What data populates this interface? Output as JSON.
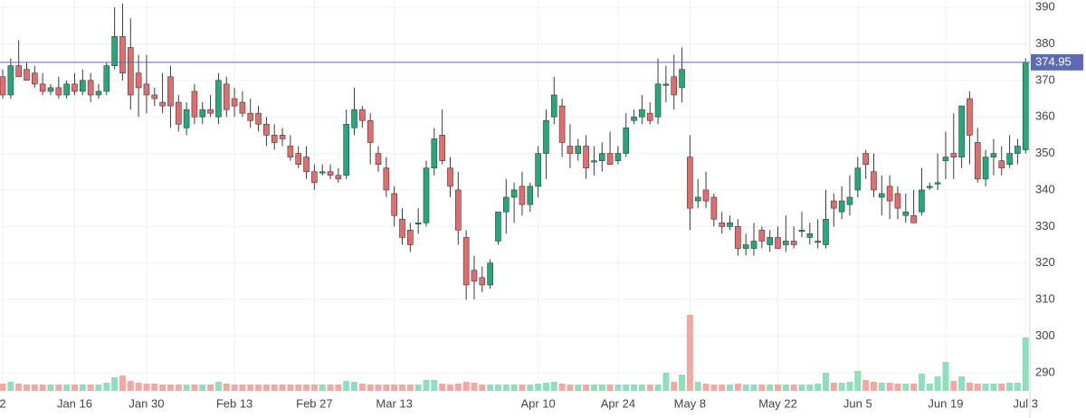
{
  "chart_data": {
    "type": "candlestick",
    "categories": [
      "2",
      null,
      null,
      null,
      null,
      null,
      null,
      null,
      null,
      "Jan 16",
      null,
      null,
      null,
      null,
      null,
      null,
      null,
      null,
      "Jan 30",
      null,
      null,
      null,
      null,
      null,
      null,
      null,
      null,
      null,
      null,
      "Feb 13",
      null,
      null,
      null,
      null,
      null,
      null,
      null,
      null,
      null,
      "Feb 27",
      null,
      null,
      null,
      null,
      null,
      null,
      null,
      null,
      null,
      "Mar 13",
      null,
      null,
      null,
      null,
      null,
      null,
      null,
      null,
      null,
      null,
      null,
      null,
      null,
      null,
      null,
      null,
      null,
      "Apr 10",
      null,
      null,
      null,
      null,
      null,
      null,
      null,
      null,
      null,
      "Apr 24",
      null,
      null,
      null,
      null,
      null,
      null,
      null,
      null,
      "May 8",
      null,
      null,
      null,
      null,
      null,
      null,
      null,
      null,
      null,
      null,
      "May 22",
      null,
      null,
      null,
      null,
      null,
      null,
      null,
      null,
      null,
      "Jun 5",
      null,
      null,
      null,
      null,
      null,
      null,
      null,
      null,
      null,
      null,
      "Jun 19",
      null,
      null,
      null,
      null,
      null,
      null,
      null,
      null,
      null,
      "Jul 3"
    ],
    "open": [
      371,
      366,
      374,
      373,
      372,
      369,
      367,
      368,
      366,
      369,
      367,
      370,
      366,
      367,
      374,
      382,
      379,
      372,
      369,
      366,
      364,
      371,
      364,
      357,
      367,
      360,
      362,
      360,
      369,
      365,
      364,
      361,
      361,
      358,
      355,
      355,
      352,
      350,
      349,
      345,
      345,
      345,
      344,
      344,
      357,
      362,
      359,
      350,
      346,
      339,
      332,
      329,
      331,
      331,
      346,
      355,
      346,
      340,
      327,
      318,
      316,
      314,
      326,
      334,
      338,
      341,
      336,
      341,
      350,
      360,
      363,
      352,
      350,
      352,
      348,
      348,
      350,
      348,
      350,
      359,
      360,
      361,
      360,
      369,
      371,
      368,
      349,
      337,
      340,
      338,
      331,
      330,
      330,
      324,
      324,
      329,
      325,
      327,
      325,
      326,
      329,
      327,
      326,
      325,
      337,
      334,
      336,
      340,
      350,
      345,
      338,
      341,
      339,
      333,
      333,
      334,
      341,
      342,
      348,
      350,
      349,
      365,
      353,
      343,
      349,
      348,
      347,
      350,
      351
    ],
    "high": [
      373,
      376,
      381,
      375,
      374,
      372,
      369,
      371,
      370,
      372,
      373,
      372,
      369,
      375,
      390,
      391,
      387,
      377,
      377,
      368,
      372,
      374,
      366,
      364,
      369,
      364,
      366,
      372,
      371,
      368,
      367,
      365,
      363,
      360,
      358,
      357,
      355,
      352,
      352,
      347,
      347,
      347,
      346,
      362,
      368,
      363,
      361,
      352,
      349,
      341,
      335,
      331,
      335,
      348,
      357,
      362,
      349,
      345,
      329,
      322,
      319,
      321,
      334,
      343,
      342,
      345,
      342,
      352,
      362,
      371,
      365,
      358,
      354,
      355,
      352,
      353,
      356,
      352,
      361,
      362,
      366,
      364,
      376,
      374,
      377,
      379,
      355,
      343,
      345,
      339,
      334,
      333,
      332,
      328,
      331,
      330,
      329,
      330,
      333,
      330,
      334,
      331,
      332,
      340,
      339,
      341,
      344,
      349,
      351,
      350,
      344,
      344,
      341,
      339,
      340,
      346,
      342,
      350,
      356,
      361,
      363,
      367,
      357,
      351,
      354,
      352,
      355,
      354,
      376
    ],
    "low": [
      365,
      365,
      371,
      370,
      368,
      366,
      366,
      365,
      365,
      366,
      366,
      364,
      365,
      366,
      373,
      370,
      362,
      360,
      361,
      363,
      361,
      357,
      356,
      355,
      358,
      358,
      360,
      358,
      360,
      360,
      360,
      357,
      356,
      352,
      351,
      352,
      348,
      346,
      343,
      340,
      344,
      343,
      342,
      343,
      355,
      357,
      347,
      345,
      338,
      330,
      325,
      323,
      328,
      330,
      344,
      347,
      338,
      325,
      310,
      310,
      312,
      313,
      325,
      328,
      331,
      333,
      334,
      338,
      343,
      358,
      349,
      346,
      348,
      343,
      344,
      345,
      347,
      347,
      349,
      358,
      358,
      358,
      358,
      364,
      362,
      364,
      329,
      335,
      335,
      330,
      328,
      329,
      322,
      322,
      322,
      324,
      323,
      324,
      323,
      324,
      327,
      325,
      324,
      324,
      330,
      332,
      333,
      338,
      343,
      338,
      333,
      332,
      332,
      331,
      331,
      333,
      340,
      340,
      343,
      343,
      346,
      347,
      342,
      341,
      344,
      344,
      346,
      347,
      350
    ],
    "close": [
      366,
      374,
      371,
      370,
      369,
      367,
      368,
      366,
      369,
      367,
      370,
      366,
      367,
      374,
      382,
      372,
      366,
      368,
      366,
      365,
      363,
      363,
      358,
      362,
      360,
      362,
      361,
      370,
      362,
      363,
      361,
      359,
      358,
      355,
      353,
      354,
      349,
      347,
      345,
      342,
      345,
      344,
      343,
      358,
      362,
      359,
      353,
      347,
      340,
      333,
      327,
      325,
      331,
      346,
      354,
      348,
      341,
      329,
      314,
      315,
      314,
      320,
      334,
      338,
      340,
      336,
      341,
      350,
      359,
      366,
      353,
      350,
      352,
      346,
      348,
      350,
      347,
      350,
      357,
      360,
      362,
      359,
      369,
      369,
      366,
      373,
      335,
      338,
      337,
      332,
      330,
      331,
      324,
      325,
      326,
      326,
      327,
      324,
      326,
      325,
      329,
      328,
      326,
      332,
      335,
      337,
      338,
      346,
      347,
      340,
      339,
      337,
      335,
      334,
      331,
      340,
      341,
      342,
      349,
      349,
      363,
      355,
      343,
      349,
      350,
      346,
      350,
      352,
      374.95
    ],
    "volume": [
      4,
      6,
      4,
      3,
      3,
      3,
      3,
      3,
      3,
      3,
      3,
      3,
      3,
      5,
      11,
      13,
      7,
      5,
      4,
      4,
      3,
      3,
      3,
      3,
      3,
      3,
      3,
      6,
      4,
      3,
      3,
      3,
      3,
      3,
      3,
      3,
      3,
      3,
      3,
      3,
      3,
      3,
      3,
      7,
      6,
      4,
      3,
      3,
      3,
      3,
      3,
      3,
      3,
      8,
      8,
      4,
      3,
      4,
      6,
      5,
      3,
      3,
      3,
      3,
      3,
      3,
      3,
      4,
      5,
      6,
      4,
      3,
      3,
      3,
      3,
      3,
      3,
      3,
      3,
      3,
      3,
      3,
      3,
      16,
      6,
      14,
      80,
      6,
      4,
      3,
      3,
      3,
      4,
      3,
      3,
      3,
      3,
      3,
      3,
      3,
      3,
      3,
      4,
      16,
      5,
      5,
      6,
      18,
      8,
      6,
      5,
      5,
      4,
      4,
      4,
      15,
      4,
      12,
      28,
      7,
      12,
      5,
      4,
      4,
      4,
      4,
      5,
      5,
      55
    ],
    "ylim": [
      285,
      392
    ],
    "yticks": [
      290,
      300,
      310,
      320,
      330,
      340,
      350,
      360,
      370,
      380,
      390
    ],
    "last_price": 374.95,
    "last_price_color": "#5b6bb5",
    "up_color": "#22ab78",
    "down_color": "#e46c6c",
    "up_volume_color": "#8ee0bc",
    "down_volume_color": "#f5a8a0",
    "grid": true
  }
}
